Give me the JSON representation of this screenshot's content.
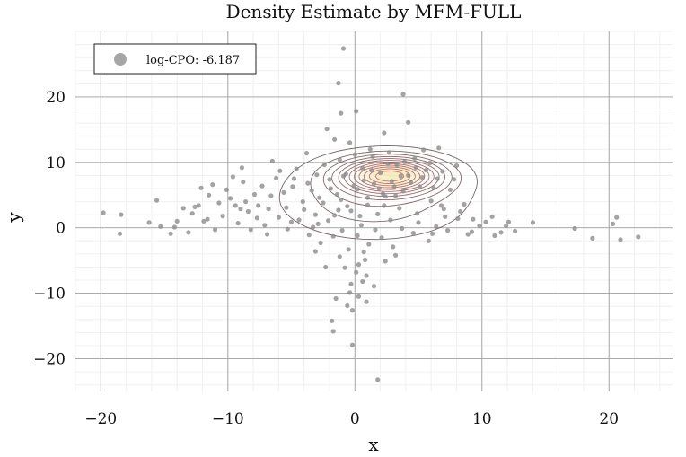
{
  "chart_data": {
    "type": "scatter",
    "title": "Density Estimate by MFM-FULL",
    "xlabel": "x",
    "ylabel": "y",
    "xlim": [
      -22,
      25
    ],
    "ylim": [
      -25,
      30
    ],
    "xticks": [
      -20,
      -10,
      0,
      10,
      20
    ],
    "yticks": [
      -20,
      -10,
      0,
      10,
      20
    ],
    "xtick_labels": [
      "−20",
      "−10",
      "0",
      "10",
      "20"
    ],
    "ytick_labels": [
      "−20",
      "−10",
      "0",
      "10",
      "20"
    ],
    "grid": true,
    "legend": {
      "position": "top-left",
      "entries": [
        {
          "label": "log-CPO: -6.187",
          "color": "#a6a6a6",
          "marker": "circle"
        }
      ]
    },
    "colors": {
      "points": "#8c8c8c",
      "contour_outer": "#5a4a48",
      "contour_inner": "#c75a50",
      "density_peak": "#f3e39a"
    },
    "density": {
      "kind": "contours",
      "description_levels": 12,
      "center": [
        2.5,
        7.5
      ],
      "components": [
        {
          "weight": 0.55,
          "mean": [
            1.5,
            4.5
          ],
          "sd": [
            5.2,
            4.4
          ]
        },
        {
          "weight": 0.45,
          "mean": [
            2.8,
            8.0
          ],
          "sd": [
            2.6,
            1.8
          ]
        }
      ]
    },
    "series": [
      {
        "name": "observations",
        "points": [
          [
            -19.8,
            2.3
          ],
          [
            -18.4,
            2.0
          ],
          [
            -18.5,
            -0.9
          ],
          [
            -16.2,
            0.8
          ],
          [
            -15.3,
            0.2
          ],
          [
            -14.5,
            -0.9
          ],
          [
            -14.0,
            1.0
          ],
          [
            -13.1,
            -0.7
          ],
          [
            -12.6,
            3.2
          ],
          [
            -12.1,
            6.1
          ],
          [
            -11.6,
            1.3
          ],
          [
            -11.0,
            -0.3
          ],
          [
            -10.4,
            1.8
          ],
          [
            -9.8,
            4.5
          ],
          [
            -9.2,
            0.7
          ],
          [
            -8.8,
            7.0
          ],
          [
            -8.4,
            2.5
          ],
          [
            -7.6,
            3.4
          ],
          [
            -7.1,
            0.4
          ],
          [
            -6.6,
            4.9
          ],
          [
            -6.0,
            1.6
          ],
          [
            -5.4,
            3.1
          ],
          [
            -4.9,
            6.3
          ],
          [
            -4.4,
            1.2
          ],
          [
            -4.0,
            2.8
          ],
          [
            -3.4,
            5.7
          ],
          [
            -2.9,
            0.6
          ],
          [
            -2.5,
            3.8
          ],
          [
            -2.0,
            7.4
          ],
          [
            -1.6,
            1.9
          ],
          [
            -1.1,
            4.3
          ],
          [
            -0.7,
            8.2
          ],
          [
            -0.3,
            2.6
          ],
          [
            0.2,
            5.9
          ],
          [
            0.6,
            9.1
          ],
          [
            1.0,
            3.5
          ],
          [
            1.5,
            6.7
          ],
          [
            2.0,
            8.4
          ],
          [
            2.4,
            4.8
          ],
          [
            2.9,
            7.1
          ],
          [
            3.3,
            9.6
          ],
          [
            3.8,
            5.6
          ],
          [
            4.2,
            8.0
          ],
          [
            4.7,
            10.6
          ],
          [
            5.1,
            6.3
          ],
          [
            5.6,
            8.8
          ],
          [
            6.0,
            4.1
          ],
          [
            6.5,
            7.5
          ],
          [
            7.0,
            2.9
          ],
          [
            7.5,
            5.8
          ],
          [
            8.1,
            1.4
          ],
          [
            8.6,
            3.6
          ],
          [
            9.2,
            -0.6
          ],
          [
            10.3,
            0.9
          ],
          [
            11.0,
            -1.2
          ],
          [
            11.9,
            0.3
          ],
          [
            12.6,
            -0.5
          ],
          [
            14.0,
            0.8
          ],
          [
            17.3,
            -0.1
          ],
          [
            18.7,
            -1.6
          ],
          [
            20.3,
            0.6
          ],
          [
            20.6,
            1.6
          ],
          [
            20.9,
            -1.8
          ],
          [
            22.3,
            -1.4
          ],
          [
            -1.8,
            -14.2
          ],
          [
            -1.7,
            -15.8
          ],
          [
            -0.6,
            -11.9
          ],
          [
            0.3,
            -10.5
          ],
          [
            0.6,
            -8.2
          ],
          [
            0.9,
            -11.3
          ],
          [
            -0.2,
            -17.9
          ],
          [
            1.8,
            -23.2
          ],
          [
            -0.9,
            27.4
          ],
          [
            -1.3,
            22.1
          ],
          [
            3.8,
            20.4
          ],
          [
            4.2,
            16.1
          ],
          [
            -1.1,
            17.5
          ],
          [
            0.1,
            17.8
          ],
          [
            6.6,
            12.2
          ],
          [
            -1.6,
            13.5
          ],
          [
            1.2,
            12.0
          ],
          [
            -3.8,
            11.4
          ],
          [
            5.4,
            11.9
          ],
          [
            -2.2,
            15.1
          ],
          [
            2.3,
            14.5
          ],
          [
            -0.4,
            13.0
          ],
          [
            8.0,
            9.5
          ],
          [
            -5.9,
            8.7
          ],
          [
            -8.9,
            9.2
          ],
          [
            -9.6,
            7.8
          ],
          [
            -11.5,
            5.0
          ],
          [
            -12.3,
            3.4
          ],
          [
            -10.1,
            5.8
          ],
          [
            -7.3,
            6.4
          ],
          [
            -6.5,
            10.2
          ],
          [
            -4.6,
            9.0
          ],
          [
            0.2,
            -1.2
          ],
          [
            -0.5,
            -3.3
          ],
          [
            0.8,
            -4.9
          ],
          [
            -0.8,
            -6.1
          ],
          [
            0.1,
            -6.8
          ],
          [
            -0.3,
            -8.6
          ],
          [
            1.1,
            -2.5
          ],
          [
            -1.0,
            -0.4
          ],
          [
            2.1,
            -1.5
          ],
          [
            3.0,
            -2.9
          ],
          [
            -2.7,
            -2.3
          ],
          [
            -3.6,
            -1.1
          ],
          [
            4.6,
            -0.8
          ],
          [
            5.8,
            -2.0
          ],
          [
            -5.3,
            -0.2
          ],
          [
            6.4,
            0.2
          ],
          [
            -6.9,
            -1.0
          ],
          [
            7.3,
            -0.4
          ],
          [
            -8.2,
            -0.3
          ],
          [
            -4.1,
            4.0
          ],
          [
            -3.1,
            2.0
          ],
          [
            -1.4,
            5.1
          ],
          [
            1.8,
            2.1
          ],
          [
            3.5,
            3.0
          ],
          [
            4.9,
            2.2
          ],
          [
            6.8,
            3.4
          ],
          [
            8.3,
            2.5
          ],
          [
            9.3,
            1.3
          ],
          [
            -9.0,
            2.9
          ],
          [
            -10.7,
            3.8
          ],
          [
            -7.9,
            5.1
          ],
          [
            -6.2,
            7.6
          ],
          [
            -3.0,
            8.1
          ],
          [
            -2.4,
            9.6
          ],
          [
            -1.2,
            10.4
          ],
          [
            0.0,
            11.2
          ],
          [
            1.4,
            10.9
          ],
          [
            2.7,
            11.5
          ],
          [
            3.9,
            10.1
          ],
          [
            4.8,
            9.2
          ],
          [
            5.9,
            9.9
          ],
          [
            6.9,
            8.6
          ],
          [
            7.8,
            7.4
          ],
          [
            0.7,
            7.2
          ],
          [
            1.9,
            6.0
          ],
          [
            2.6,
            9.8
          ],
          [
            3.6,
            7.9
          ],
          [
            4.4,
            6.9
          ],
          [
            -0.1,
            6.4
          ],
          [
            -0.9,
            7.9
          ],
          [
            1.3,
            8.8
          ],
          [
            2.2,
            5.2
          ],
          [
            3.1,
            6.3
          ],
          [
            5.3,
            7.7
          ],
          [
            6.2,
            6.1
          ],
          [
            -1.9,
            6.0
          ],
          [
            -2.8,
            4.6
          ],
          [
            -3.7,
            6.8
          ],
          [
            -4.8,
            7.5
          ],
          [
            -5.6,
            5.4
          ],
          [
            -6.8,
            2.9
          ],
          [
            -7.7,
            1.5
          ],
          [
            -5.0,
            0.9
          ],
          [
            -3.3,
            0.1
          ],
          [
            -1.7,
            -1.3
          ],
          [
            0.5,
            0.4
          ],
          [
            1.6,
            -0.3
          ],
          [
            2.8,
            1.2
          ],
          [
            3.7,
            -0.1
          ],
          [
            5.0,
            0.8
          ],
          [
            6.1,
            -0.9
          ],
          [
            7.1,
            1.7
          ],
          [
            -13.5,
            3.0
          ],
          [
            -12.8,
            2.2
          ],
          [
            -11.9,
            1.0
          ],
          [
            -15.6,
            4.2
          ],
          [
            -14.2,
            0.1
          ],
          [
            -9.4,
            3.4
          ],
          [
            -8.6,
            4.0
          ],
          [
            -11.2,
            6.6
          ],
          [
            10.8,
            1.7
          ],
          [
            11.5,
            -0.7
          ],
          [
            12.1,
            0.9
          ],
          [
            9.8,
            0.3
          ],
          [
            8.9,
            -1.0
          ],
          [
            -0.6,
            3.3
          ],
          [
            0.4,
            1.8
          ],
          [
            1.0,
            4.6
          ],
          [
            2.3,
            3.4
          ],
          [
            3.2,
            4.9
          ],
          [
            -1.3,
            2.7
          ],
          [
            -2.1,
            1.1
          ],
          [
            0.9,
            -7.3
          ],
          [
            -0.4,
            -9.9
          ],
          [
            0.3,
            -5.6
          ],
          [
            -1.2,
            -4.4
          ],
          [
            1.5,
            -8.9
          ],
          [
            -1.5,
            -10.8
          ],
          [
            -0.2,
            -12.6
          ],
          [
            0.7,
            -3.7
          ],
          [
            2.4,
            -5.1
          ],
          [
            -2.3,
            -6.0
          ],
          [
            3.2,
            -4.2
          ],
          [
            -3.1,
            -3.6
          ]
        ]
      }
    ]
  }
}
